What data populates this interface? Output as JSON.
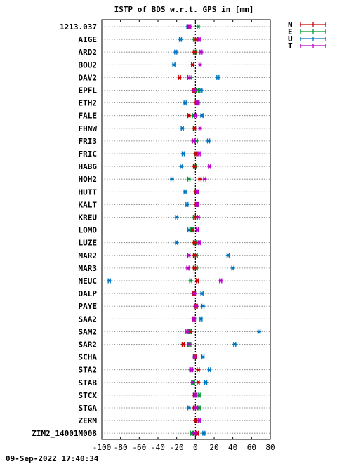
{
  "chart_data": {
    "type": "scatter",
    "title": "ISTP of BDS w.r.t. GPS in [mm]",
    "xlim": [
      -100,
      80
    ],
    "xticks": [
      -100,
      -80,
      -60,
      -40,
      -20,
      0,
      20,
      40,
      60,
      80
    ],
    "xtick_labels": [
      "-100",
      "-80",
      "-60",
      "-40",
      "-20",
      "0",
      "20",
      "40",
      "60",
      "80"
    ],
    "grid": "horizontal dotted lines per station, vertical dotted line at x=0",
    "legend_position": "top-right",
    "stations": [
      "1213.037",
      "AIGE",
      "ARD2",
      "BOU2",
      "DAV2",
      "EPFL",
      "ETH2",
      "FALE",
      "FHNW",
      "FRI3",
      "FRIC",
      "HABG",
      "HOH2",
      "HUTT",
      "KALT",
      "KREU",
      "LOMO",
      "LUZE",
      "MAR2",
      "MAR3",
      "NEUC",
      "OALP",
      "PAYE",
      "SAA2",
      "SAM2",
      "SAR2",
      "SCHA",
      "STA2",
      "STAB",
      "STCX",
      "STGA",
      "ZERM",
      "ZIM2_14001M008"
    ],
    "series": [
      {
        "name": "N",
        "color": "#cc0000",
        "values": [
          -7,
          1,
          -1,
          -3,
          -17,
          -2,
          1,
          -7,
          -1,
          -2,
          0,
          -1,
          5,
          0,
          1,
          1,
          -3,
          -1,
          -1,
          -1,
          2,
          -2,
          0,
          -2,
          -5,
          -13,
          0,
          3,
          3,
          -1,
          -1,
          0,
          2
        ]
      },
      {
        "name": "E",
        "color": "#009933",
        "values": [
          3,
          -1,
          0,
          -3,
          -5,
          2,
          3,
          -2,
          -1,
          1,
          1,
          0,
          -7,
          1,
          1,
          -1,
          -4,
          0,
          1,
          1,
          -5,
          -1,
          1,
          -1,
          -6,
          -6,
          -1,
          -5,
          -2,
          4,
          4,
          0,
          -4
        ]
      },
      {
        "name": "U",
        "color": "#0077c0",
        "values": [
          -8,
          -16,
          -21,
          -23,
          24,
          6,
          -11,
          7,
          -14,
          14,
          -13,
          -15,
          -25,
          -11,
          -9,
          -20,
          -7,
          -20,
          35,
          40,
          -92,
          7,
          8,
          6,
          68,
          42,
          8,
          15,
          11,
          -1,
          -7,
          4,
          9
        ]
      },
      {
        "name": "T",
        "color": "#bb00cc",
        "values": [
          -6,
          4,
          6,
          5,
          -7,
          -1,
          2,
          0,
          5,
          -2,
          4,
          15,
          10,
          2,
          2,
          3,
          2,
          4,
          -7,
          -8,
          27,
          -1,
          1,
          -2,
          -9,
          -7,
          -1,
          -4,
          -3,
          0,
          1,
          4,
          -1
        ]
      }
    ]
  },
  "timestamp": "09-Sep-2022 17:40:34"
}
